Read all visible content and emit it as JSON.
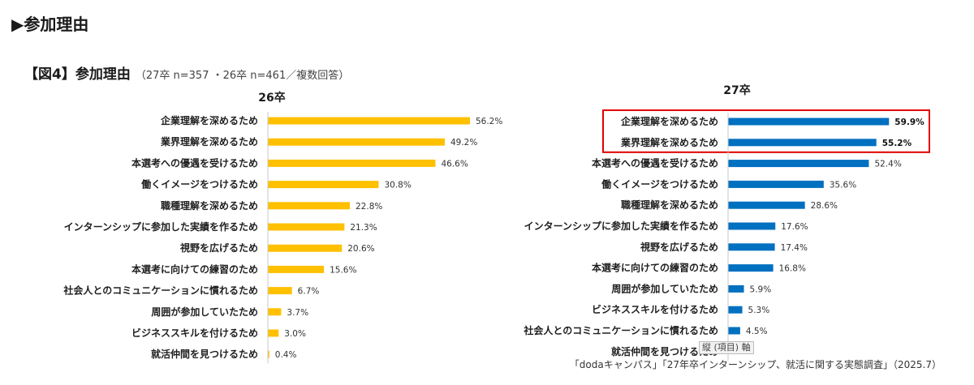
{
  "section_title": "▶参加理由",
  "figure": {
    "title_main": "【図4】参加理由",
    "title_sub": "（27卒 n=357 ・26卒 n=461／複数回答）"
  },
  "axis_tag": "縦 (項目) 軸",
  "source": "「dodaキャンパス」「27年卒インターンシップ、就活に関する実態調査」（2025.7）",
  "colors": {
    "26": "#FFC000",
    "27": "#0070C0",
    "highlight": "#E00000"
  },
  "chart_data": [
    {
      "type": "bar",
      "orientation": "horizontal",
      "title": "26卒",
      "unit": "%",
      "categories": [
        "企業理解を深めるため",
        "業界理解を深めるため",
        "本選考への優遇を受けるため",
        "働くイメージをつけるため",
        "職種理解を深めるため",
        "インターンシップに参加した実績を作るため",
        "視野を広げるため",
        "本選考に向けての練習のため",
        "社会人とのコミュニケーションに慣れるため",
        "周囲が参加していたため",
        "ビジネススキルを付けるため",
        "就活仲間を見つけるため"
      ],
      "values": [
        56.2,
        49.2,
        46.6,
        30.8,
        22.8,
        21.3,
        20.6,
        15.6,
        6.7,
        3.7,
        3.0,
        0.4
      ],
      "value_labels": [
        "56.2%",
        "49.2%",
        "46.6%",
        "30.8%",
        "22.8%",
        "21.3%",
        "20.6%",
        "15.6%",
        "6.7%",
        "3.7%",
        "3.0%",
        "0.4%"
      ]
    },
    {
      "type": "bar",
      "orientation": "horizontal",
      "title": "27卒",
      "unit": "%",
      "categories": [
        "企業理解を深めるため",
        "業界理解を深めるため",
        "本選考への優遇を受けるため",
        "働くイメージをつけるため",
        "職種理解を深めるため",
        "インターンシップに参加した実績を作るため",
        "視野を広げるため",
        "本選考に向けての練習のため",
        "周囲が参加していたため",
        "ビジネススキルを付けるため",
        "社会人とのコミュニケーションに慣れるため",
        "就活仲間を見つけるため"
      ],
      "values": [
        59.9,
        55.2,
        52.4,
        35.6,
        28.6,
        17.6,
        17.4,
        16.8,
        5.9,
        5.3,
        4.5,
        null
      ],
      "value_labels": [
        "59.9%",
        "55.2%",
        "52.4%",
        "35.6%",
        "28.6%",
        "17.6%",
        "17.4%",
        "16.8%",
        "5.9%",
        "5.3%",
        "4.5%",
        ""
      ],
      "highlighted": [
        0,
        1
      ]
    }
  ]
}
